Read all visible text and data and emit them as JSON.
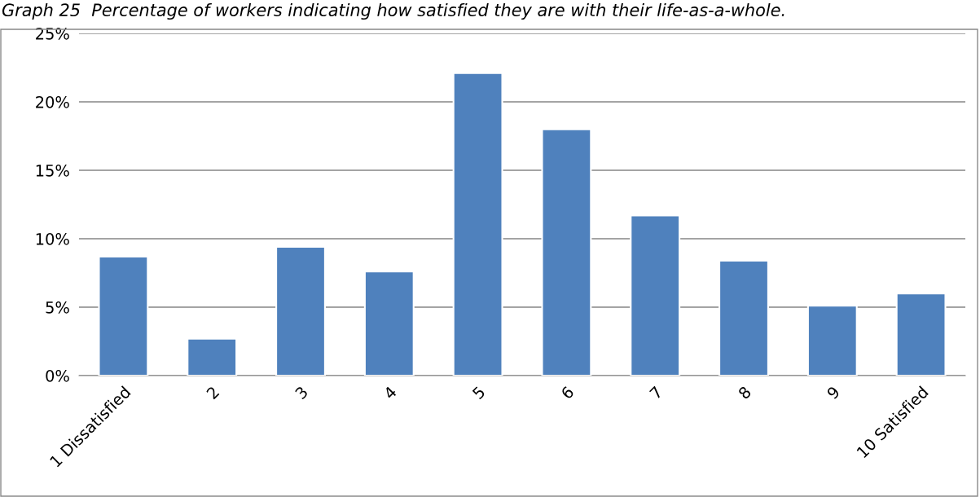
{
  "chart_data": {
    "type": "bar",
    "title": "Graph 25  Percentage of workers indicating how satisfied they are with their life-as-a-whole.",
    "categories": [
      "1 Dissatisfied",
      "2",
      "3",
      "4",
      "5",
      "6",
      "7",
      "8",
      "9",
      "10 Satisfied"
    ],
    "values": [
      8.7,
      2.7,
      9.4,
      7.6,
      22.1,
      18.0,
      11.7,
      8.4,
      5.1,
      6.0
    ],
    "color": "#4f81bd",
    "ylim": [
      0,
      25
    ],
    "yticks": [
      {
        "value": 0,
        "label": "0%"
      },
      {
        "value": 5,
        "label": "5%"
      },
      {
        "value": 10,
        "label": "10%"
      },
      {
        "value": 15,
        "label": "15%"
      },
      {
        "value": 20,
        "label": "20%"
      },
      {
        "value": 25,
        "label": "25%"
      }
    ],
    "grid": "y",
    "legend": false
  }
}
